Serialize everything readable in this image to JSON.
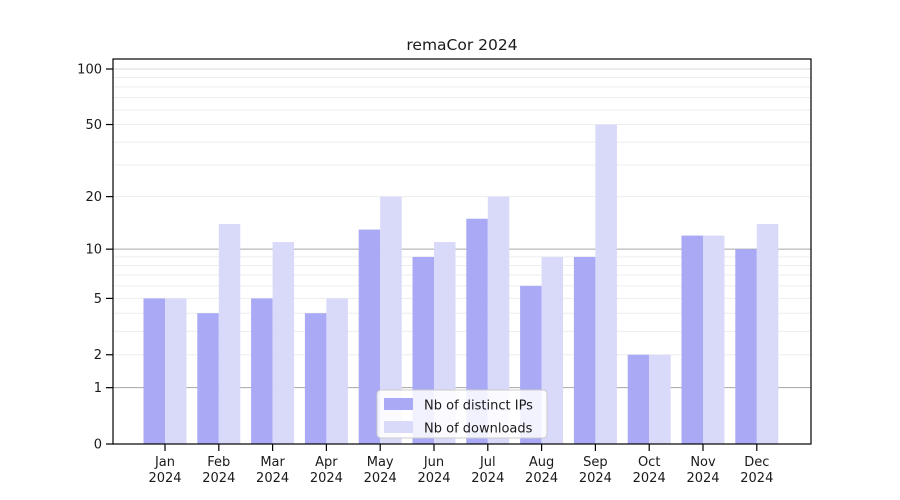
{
  "chart_data": {
    "type": "bar",
    "title": "remaCor 2024",
    "categories": [
      "Jan",
      "Feb",
      "Mar",
      "Apr",
      "May",
      "Jun",
      "Jul",
      "Aug",
      "Sep",
      "Oct",
      "Nov",
      "Dec"
    ],
    "category_year": "2024",
    "series": [
      {
        "name": "Nb of distinct IPs",
        "color": "#a9a9f5",
        "values": [
          5,
          4,
          5,
          4,
          13,
          9,
          15,
          6,
          9,
          2,
          12,
          10
        ]
      },
      {
        "name": "Nb of downloads",
        "color": "#d9d9fa",
        "values": [
          5,
          14,
          11,
          5,
          20,
          11,
          20,
          9,
          50,
          2,
          12,
          14
        ]
      }
    ],
    "xlabel": "",
    "ylabel": "",
    "y_axis": {
      "scale": "log1p",
      "ylim": [
        0,
        100
      ],
      "tick_labels": [
        "0",
        "1",
        "2",
        "5",
        "10",
        "20",
        "50",
        "100"
      ],
      "tick_values": [
        0,
        1,
        2,
        5,
        10,
        20,
        50,
        100
      ],
      "major_grid_values": [
        1,
        10
      ],
      "top_grid_value": 100,
      "minor_grid_values": [
        2,
        3,
        4,
        5,
        6,
        7,
        8,
        9,
        20,
        30,
        40,
        50,
        60,
        70,
        80,
        90
      ]
    },
    "legend": {
      "position": "lower center",
      "entries": [
        "Nb of distinct IPs",
        "Nb of downloads"
      ]
    },
    "grid": true
  },
  "style": {
    "bar_color_ips": "#a9a9f5",
    "bar_color_downloads": "#d9d9fa",
    "major_grid_color": "#a6a6a6",
    "top_grid_color": "#d9d9d9",
    "minor_grid_color": "#ededed",
    "axis_color": "#000000",
    "text_color": "#1a1a1a",
    "legend_border_color": "#cccccc",
    "legend_background": "#ffffff",
    "background": "#ffffff"
  }
}
